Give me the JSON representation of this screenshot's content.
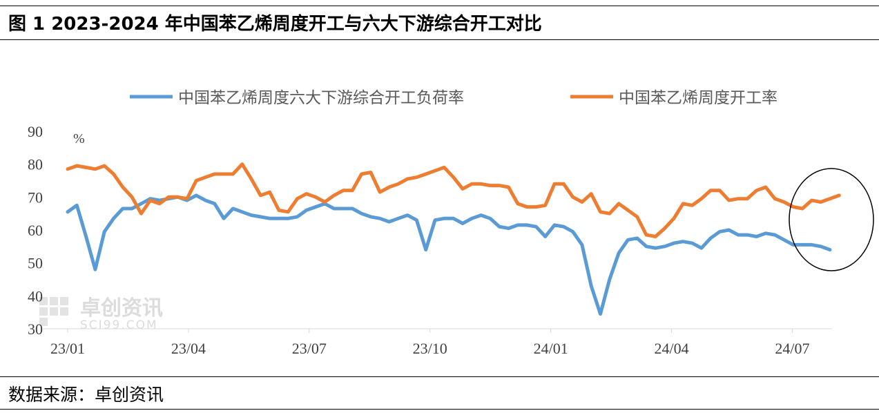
{
  "title": "图 1 2023-2024 年中国苯乙烯周度开工与六大下游综合开工对比",
  "source": "数据来源：卓创资讯",
  "watermark": {
    "text_cn": "卓创资讯",
    "text_en": "SCI99.COM"
  },
  "colors": {
    "series_blue": "#5b9bd5",
    "series_orange": "#ed7d31",
    "axis": "#d9d9d9",
    "tick_text": "#404040"
  },
  "chart_data": {
    "type": "line",
    "ylabel": "%",
    "ylim": [
      30,
      90
    ],
    "yticks": [
      30,
      40,
      50,
      60,
      70,
      80,
      90
    ],
    "xticks": [
      "23/01",
      "23/04",
      "23/07",
      "23/10",
      "24/01",
      "24/04",
      "24/07"
    ],
    "grid": false,
    "legend_position": "top",
    "annotation": "ellipse around latest values (2024/07-2024/08)",
    "series": [
      {
        "name": "中国苯乙烯周度六大下游综合开工负荷率",
        "color": "#5b9bd5",
        "values": [
          65.5,
          67.5,
          58,
          48,
          59.5,
          63.5,
          66.5,
          66.5,
          68,
          69.5,
          69,
          69.5,
          70,
          69,
          70.5,
          69,
          68,
          63.5,
          66.5,
          65.5,
          64.5,
          64,
          63.5,
          63.5,
          63.5,
          64,
          66,
          67,
          68,
          66.5,
          66.5,
          66.5,
          65,
          64,
          63.5,
          62.5,
          63.5,
          64.5,
          63,
          54,
          63,
          63.5,
          63.5,
          62,
          63.5,
          64.5,
          63.5,
          61,
          60.5,
          61.5,
          61.5,
          61,
          58,
          61.5,
          61,
          59.5,
          55.5,
          43,
          34.5,
          45,
          53,
          57,
          57.5,
          55,
          54.5,
          55,
          56,
          56.5,
          56,
          54.5,
          57.5,
          59.5,
          60,
          58.5,
          58.5,
          58,
          59,
          58.5,
          57,
          55.5,
          55.5,
          55.5,
          55,
          54
        ]
      },
      {
        "name": "中国苯乙烯周度开工率",
        "color": "#ed7d31",
        "values": [
          78.5,
          79.5,
          79,
          78.5,
          79.5,
          77,
          73,
          70,
          65,
          69,
          68,
          70,
          70,
          69.5,
          75,
          76,
          77,
          77,
          77,
          80,
          75.5,
          70.5,
          71.5,
          66,
          65.5,
          69.5,
          71,
          70,
          68.5,
          70.5,
          72,
          72,
          77,
          77.5,
          71.5,
          73,
          74,
          75.5,
          76,
          77,
          78,
          79,
          76,
          72.5,
          74,
          74,
          73.5,
          73.5,
          73,
          68,
          67,
          67,
          67.5,
          74,
          74,
          70,
          68.5,
          71,
          65.5,
          65,
          68,
          66,
          64,
          58.5,
          58,
          60.5,
          63.5,
          68,
          67.5,
          69.5,
          72,
          72,
          69,
          69.5,
          69.5,
          72,
          73,
          69.5,
          68.5,
          67,
          66.5,
          69,
          68.5,
          69.5,
          70.5
        ]
      }
    ]
  }
}
